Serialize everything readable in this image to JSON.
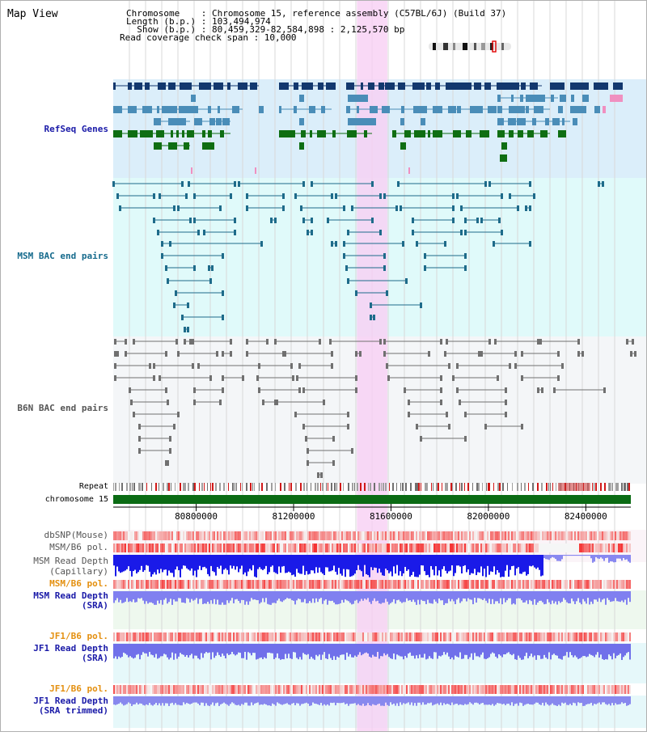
{
  "header": {
    "title": "Map View",
    "chromosome_line": "Chromosome    : Chromosome 15, reference assembly (C57BL/6J) (Build 37)",
    "length_line": "Length (b.p.) : 103,494,974",
    "show_line": "  Show (b.p.) : 80,459,329-82,584,898 : 2,125,570 bp",
    "coverage_line": "Read coverage check span : 10,000"
  },
  "tracks": {
    "refseq": "RefSeq Genes",
    "msm_bac": "MSM BAC end pairs",
    "b6n_bac": "B6N BAC end pairs",
    "repeat": "Repeat",
    "chromosome": "chromosome 15",
    "dbsnp": "dbSNP(Mouse)",
    "msm_b6_pol_cap": "MSM/B6 pol.",
    "msm_depth_cap_1": "MSM Read Depth",
    "msm_depth_cap_2": "(Capillary)",
    "msm_b6_pol_sra": "MSM/B6 pol.",
    "msm_depth_sra_1": "MSM Read Depth",
    "msm_depth_sra_2": "(SRA)",
    "jf1_b6_pol_sra": "JF1/B6 pol.",
    "jf1_depth_sra_1": "JF1 Read Depth",
    "jf1_depth_sra_2": "(SRA)",
    "jf1_b6_pol_trim": "JF1/B6 pol.",
    "jf1_depth_trim_1": "JF1 Read Depth",
    "jf1_depth_trim_2": "(SRA trimmed)"
  },
  "axis": {
    "ticks": [
      {
        "value": 80800000,
        "label": "80800000"
      },
      {
        "value": 81200000,
        "label": "81200000"
      },
      {
        "value": 81600000,
        "label": "81600000"
      },
      {
        "value": 82000000,
        "label": "82000000"
      },
      {
        "value": 82400000,
        "label": "82400000"
      }
    ],
    "view_start": 80459329,
    "view_end": 82584898,
    "highlight_start": 81460000,
    "highlight_end": 81585000
  },
  "colors": {
    "refseq_bg": "#dbeefa",
    "msm_bg": "#e0fafa",
    "b6n_bg": "#f4f6f8",
    "highlight": "#f8d0f4",
    "gene_navy": "#13386e",
    "gene_steel": "#4a8db8",
    "gene_green": "#0f6e12",
    "msm_line": "#1e6b8a",
    "b6n_line": "#707070",
    "chromosome": "#0b6b14",
    "depth_blue": "#1a1ae8",
    "depth_light": "#8080f0",
    "depth_jf1": "#7070ea",
    "snp_red": "#f05050"
  },
  "icons": {
    "chromosome_ideogram": "chromosome-ideogram-icon"
  }
}
